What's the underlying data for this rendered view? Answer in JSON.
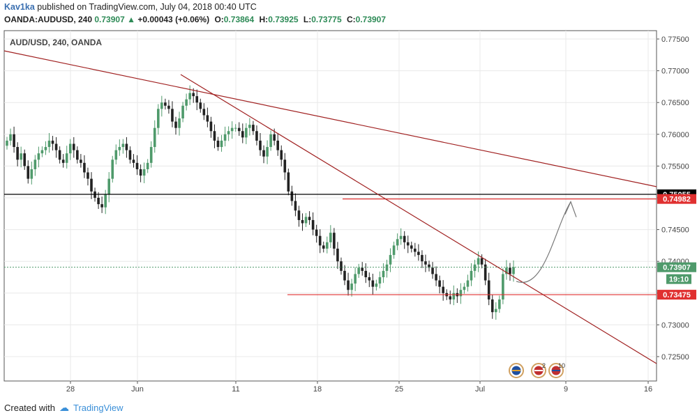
{
  "header": {
    "author": "Kav1ka",
    "published_text": "published on TradingView.com, July 04, 2018 00:40 UTC",
    "symbol_line": "OANDA:AUDUSD, 240",
    "last": "0.73907",
    "change": "+0.00043 (+0.06%)",
    "open_label": "O:",
    "open": "0.73864",
    "high_label": "H:",
    "high": "0.73925",
    "low_label": "L:",
    "low": "0.73775",
    "close_label": "C:",
    "close": "0.73907"
  },
  "footer": {
    "created_with": "Created with",
    "brand": "TradingView"
  },
  "colors": {
    "up": "#4f9a6b",
    "down": "#222222",
    "trendline": "#a02020",
    "level_red": "#e03030",
    "level_black": "#000000",
    "last_price": "#4f9a6b",
    "grid": "#e8e8e8"
  },
  "chart_data": {
    "type": "candlestick",
    "title": "AUD/USD, 240, OANDA",
    "y_ticks": [
      "0.77500",
      "0.77000",
      "0.76500",
      "0.76000",
      "0.75500",
      "0.75000",
      "0.74500",
      "0.74000",
      "0.73500",
      "0.73000",
      "0.72500"
    ],
    "x_ticks": [
      "28",
      "Jun",
      "11",
      "18",
      "25",
      "Jul",
      "9",
      "16"
    ],
    "price_labels": [
      {
        "value": 0.75055,
        "text": "0.75055",
        "style": "black"
      },
      {
        "value": 0.74982,
        "text": "0.74982",
        "style": "red"
      },
      {
        "value": 0.73907,
        "text": "0.73907",
        "style": "green"
      },
      {
        "text": "19:10",
        "style": "green-timer"
      },
      {
        "value": 0.73475,
        "text": "0.73475",
        "style": "red"
      }
    ],
    "horizontal_levels": [
      {
        "value": 0.75055,
        "color": "black"
      },
      {
        "value": 0.74982,
        "color": "red"
      },
      {
        "value": 0.73475,
        "color": "red"
      }
    ],
    "last_price": 0.73907,
    "close_series": [
      0.759,
      0.76,
      0.758,
      0.756,
      0.757,
      0.755,
      0.753,
      0.7545,
      0.756,
      0.757,
      0.7575,
      0.758,
      0.759,
      0.7585,
      0.7575,
      0.756,
      0.7555,
      0.757,
      0.7585,
      0.7575,
      0.756,
      0.7555,
      0.754,
      0.753,
      0.751,
      0.75,
      0.749,
      0.7485,
      0.7505,
      0.753,
      0.756,
      0.7575,
      0.758,
      0.7585,
      0.7575,
      0.756,
      0.7555,
      0.7545,
      0.7535,
      0.7545,
      0.7555,
      0.758,
      0.761,
      0.764,
      0.765,
      0.7645,
      0.764,
      0.762,
      0.761,
      0.7625,
      0.7645,
      0.7655,
      0.7665,
      0.766,
      0.765,
      0.764,
      0.763,
      0.762,
      0.7605,
      0.759,
      0.758,
      0.759,
      0.76,
      0.7605,
      0.761,
      0.761,
      0.7605,
      0.7595,
      0.761,
      0.7615,
      0.7605,
      0.759,
      0.7575,
      0.7565,
      0.758,
      0.76,
      0.759,
      0.7575,
      0.756,
      0.754,
      0.751,
      0.7495,
      0.748,
      0.7465,
      0.746,
      0.747,
      0.7465,
      0.745,
      0.744,
      0.7425,
      0.742,
      0.743,
      0.7445,
      0.742,
      0.74,
      0.7385,
      0.737,
      0.7355,
      0.7365,
      0.738,
      0.739,
      0.7385,
      0.7375,
      0.737,
      0.736,
      0.7365,
      0.7375,
      0.7385,
      0.7395,
      0.741,
      0.7425,
      0.7435,
      0.744,
      0.743,
      0.7425,
      0.742,
      0.7415,
      0.741,
      0.74,
      0.7395,
      0.739,
      0.738,
      0.737,
      0.736,
      0.735,
      0.7345,
      0.734,
      0.735,
      0.7345,
      0.7355,
      0.736,
      0.737,
      0.7385,
      0.7395,
      0.7405,
      0.7395,
      0.737,
      0.734,
      0.732,
      0.7325,
      0.734,
      0.738,
      0.739,
      0.738,
      0.7391
    ],
    "arrow_projection": {
      "from": 0.7385,
      "to": 0.7496
    }
  }
}
